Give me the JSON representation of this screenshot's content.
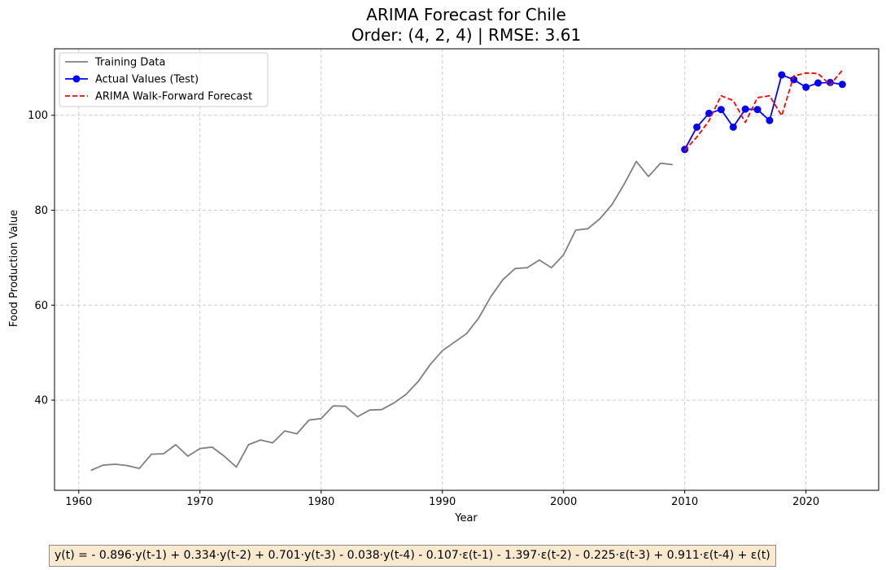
{
  "chart_data": {
    "type": "line",
    "title": "ARIMA Forecast for Chile",
    "subtitle": "Order: (4, 2, 4) | RMSE: 3.61",
    "xlabel": "Year",
    "ylabel": "Food Production Value",
    "xlim": [
      1958,
      2026
    ],
    "ylim": [
      21,
      114
    ],
    "x_ticks": [
      1960,
      1970,
      1980,
      1990,
      2000,
      2010,
      2020
    ],
    "y_ticks": [
      40,
      60,
      80,
      100
    ],
    "grid": true,
    "legend_position": "top-left",
    "series": [
      {
        "name": "Training Data",
        "color": "#808080",
        "style": "solid",
        "markers": false,
        "x": [
          1961,
          1962,
          1963,
          1964,
          1965,
          1966,
          1967,
          1968,
          1969,
          1970,
          1971,
          1972,
          1973,
          1974,
          1975,
          1976,
          1977,
          1978,
          1979,
          1980,
          1981,
          1982,
          1983,
          1984,
          1985,
          1986,
          1987,
          1988,
          1989,
          1990,
          1991,
          1992,
          1993,
          1994,
          1995,
          1996,
          1997,
          1998,
          1999,
          2000,
          2001,
          2002,
          2003,
          2004,
          2005,
          2006,
          2007,
          2008,
          2009
        ],
        "values": [
          25.2,
          26.3,
          26.5,
          26.2,
          25.6,
          28.6,
          28.7,
          30.6,
          28.2,
          29.8,
          30.1,
          28.2,
          25.9,
          30.6,
          31.6,
          31.0,
          33.5,
          32.9,
          35.8,
          36.1,
          38.8,
          38.7,
          36.5,
          37.9,
          38.0,
          39.4,
          41.2,
          43.9,
          47.5,
          50.4,
          52.2,
          54.0,
          57.3,
          61.8,
          65.4,
          67.7,
          67.9,
          69.5,
          67.9,
          70.6,
          75.8,
          76.1,
          78.2,
          81.2,
          85.5,
          90.3,
          87.1,
          89.9,
          89.6
        ]
      },
      {
        "name": "Actual Values (Test)",
        "color": "#0000ff",
        "style": "solid",
        "markers": true,
        "x": [
          2010,
          2011,
          2012,
          2013,
          2014,
          2015,
          2016,
          2017,
          2018,
          2019,
          2020,
          2021,
          2022,
          2023
        ],
        "values": [
          92.8,
          97.5,
          100.4,
          101.2,
          97.5,
          101.3,
          101.2,
          98.9,
          108.5,
          107.5,
          105.9,
          106.8,
          106.9,
          106.5
        ]
      },
      {
        "name": "ARIMA Walk-Forward Forecast",
        "color": "#ff0000",
        "style": "dashed",
        "markers": false,
        "x": [
          2010,
          2011,
          2012,
          2013,
          2014,
          2015,
          2016,
          2017,
          2018,
          2019,
          2020,
          2021,
          2022,
          2023
        ],
        "values": [
          92.6,
          95.4,
          98.8,
          104.1,
          103.1,
          98.5,
          103.7,
          104.1,
          99.9,
          108.3,
          108.9,
          108.8,
          106.4,
          109.5
        ]
      }
    ]
  },
  "equation": "y(t) = - 0.896·y(t-1) + 0.334·y(t-2) + 0.701·y(t-3) - 0.038·y(t-4) - 0.107·ε(t-1) - 1.397·ε(t-2) - 0.225·ε(t-3) + 0.911·ε(t-4) + ε(t)"
}
